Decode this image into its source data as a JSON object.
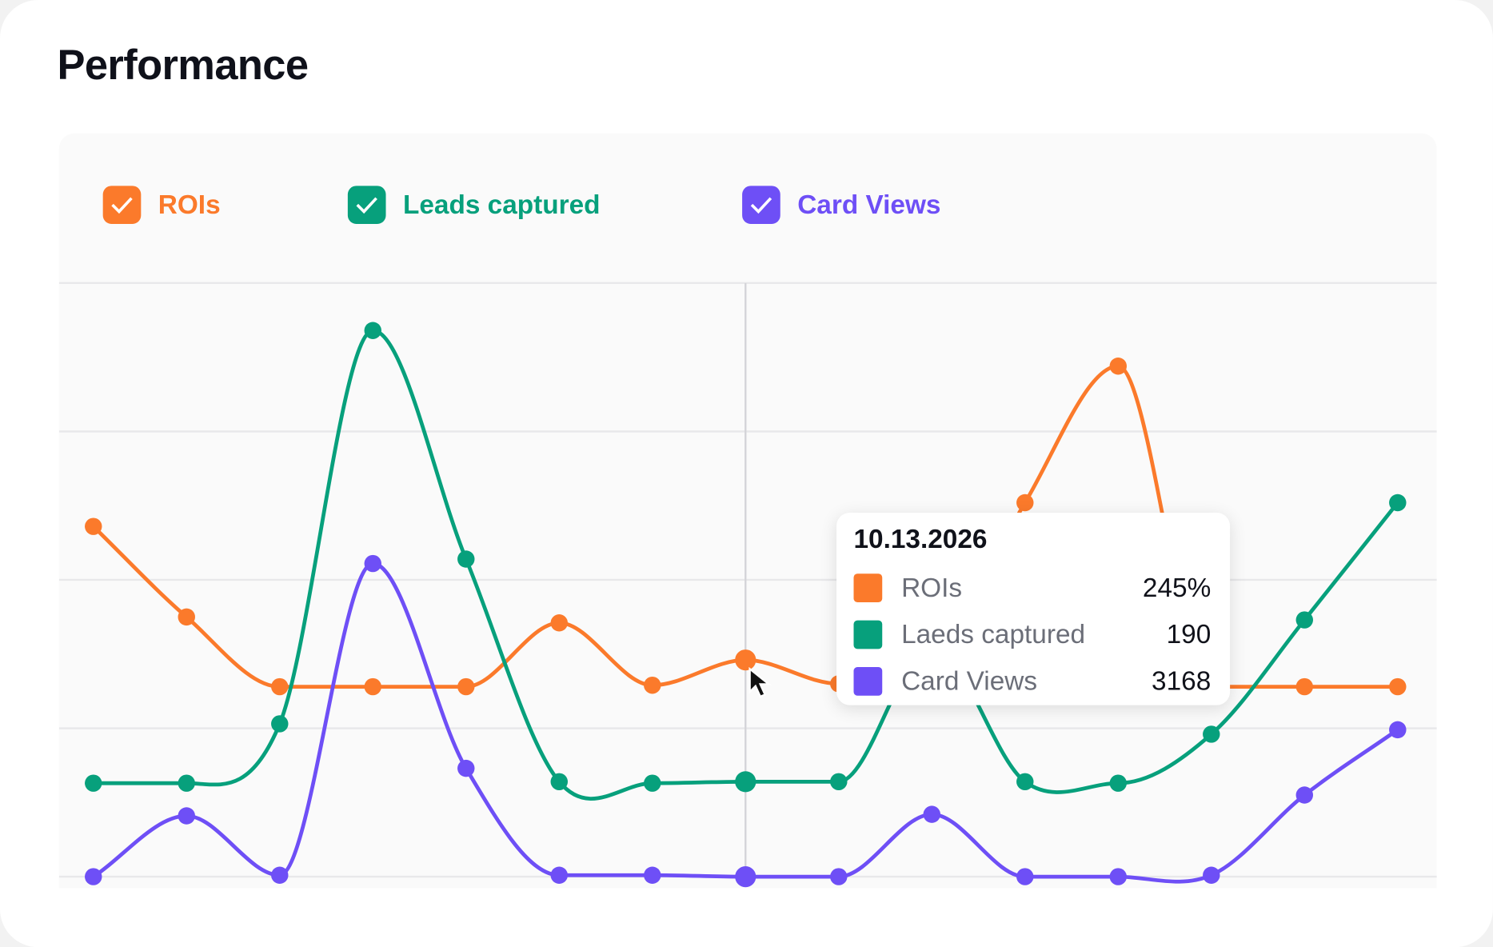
{
  "title": "Performance",
  "legend": [
    {
      "label": "ROIs",
      "color": "#fb7a2b",
      "checked": true,
      "icon": "check-icon"
    },
    {
      "label": "Leads captured",
      "color": "#07a07c",
      "checked": true,
      "icon": "check-icon"
    },
    {
      "label": "Card Views",
      "color": "#6e4ff6",
      "checked": true,
      "icon": "check-icon"
    }
  ],
  "tooltip": {
    "date": "10.13.2026",
    "rows": [
      {
        "label": "ROIs",
        "value": "245%",
        "color": "#fb7a2b"
      },
      {
        "label": "Laeds captured",
        "value": "190",
        "color": "#07a07c"
      },
      {
        "label": "Card Views",
        "value": "3168",
        "color": "#6e4ff6"
      }
    ]
  },
  "chart_data": {
    "type": "line",
    "title": "Performance",
    "x": [
      0,
      1,
      2,
      3,
      4,
      5,
      6,
      7,
      8,
      9,
      10,
      11,
      12,
      13,
      14
    ],
    "ylim": [
      0,
      4
    ],
    "grid": true,
    "smooth": true,
    "hover_index": 7,
    "legend_placement": "top-left",
    "series": [
      {
        "name": "ROIs",
        "color": "#fb7a2b",
        "values": [
          2.36,
          1.75,
          1.28,
          1.28,
          1.28,
          1.71,
          1.29,
          1.46,
          1.3,
          1.35,
          2.52,
          3.44,
          1.28,
          1.28,
          1.28
        ]
      },
      {
        "name": "Leads captured",
        "color": "#07a07c",
        "values": [
          0.63,
          0.63,
          1.03,
          3.68,
          2.14,
          0.64,
          0.63,
          0.64,
          0.64,
          1.55,
          0.64,
          0.63,
          0.96,
          1.73,
          2.52
        ]
      },
      {
        "name": "Card Views",
        "color": "#6e4ff6",
        "values": [
          0,
          0.41,
          0.01,
          2.11,
          0.73,
          0.01,
          0.01,
          0,
          0,
          0.42,
          0,
          0,
          0.01,
          0.55,
          0.99
        ]
      }
    ]
  }
}
